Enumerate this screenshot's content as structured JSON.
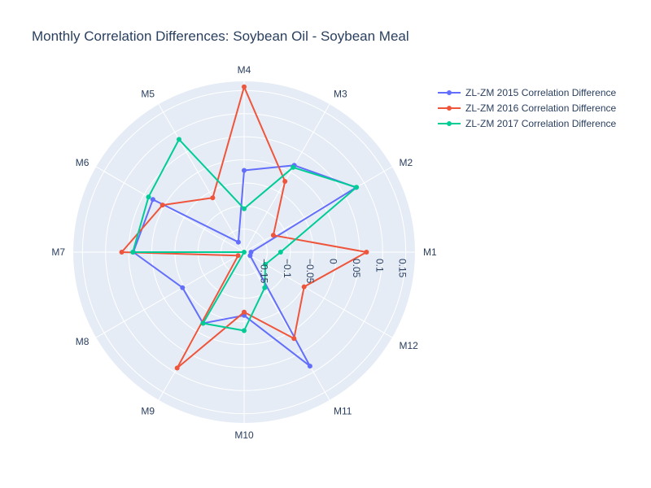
{
  "chart_data": {
    "type": "line",
    "subtype": "polar",
    "title": "Monthly Correlation Differences: Soybean Oil - Soybean Meal",
    "angular_axis": {
      "categories": [
        "M1",
        "M2",
        "M3",
        "M4",
        "M5",
        "M6",
        "M7",
        "M8",
        "M9",
        "M10",
        "M11",
        "M12"
      ],
      "direction": "counterclockwise",
      "rotation_deg": 0
    },
    "radial_axis": {
      "range": [
        -0.2,
        0.17
      ],
      "ticks": [
        -0.15,
        -0.1,
        -0.05,
        0,
        0.05,
        0.1,
        0.15
      ],
      "tick_labels": [
        "−0.15",
        "−0.1",
        "−0.05",
        "0",
        "0.05",
        "0.1",
        "0.15"
      ]
    },
    "grid": true,
    "legend": {
      "position": "top-right"
    },
    "series": [
      {
        "name": "ZL-ZM 2015 Correlation Difference",
        "color": "#636efa",
        "values": [
          -0.185,
          0.08,
          0.017,
          -0.023,
          -0.175,
          0.028,
          0.04,
          -0.046,
          -0.022,
          -0.063,
          0.085,
          -0.185
        ]
      },
      {
        "name": "ZL-ZM 2016 Correlation Difference",
        "color": "#ef553b",
        "values": [
          0.065,
          -0.127,
          -0.023,
          0.158,
          -0.064,
          0.004,
          0.065,
          -0.185,
          0.09,
          -0.07,
          0.016,
          -0.05
        ]
      },
      {
        "name": "ZL-ZM 2017 Correlation Difference",
        "color": "#00cc96",
        "values": [
          -0.121,
          0.081,
          0.012,
          -0.106,
          0.082,
          0.039,
          0.041,
          -0.2,
          -0.022,
          -0.03,
          -0.111,
          -0.147
        ]
      }
    ]
  }
}
